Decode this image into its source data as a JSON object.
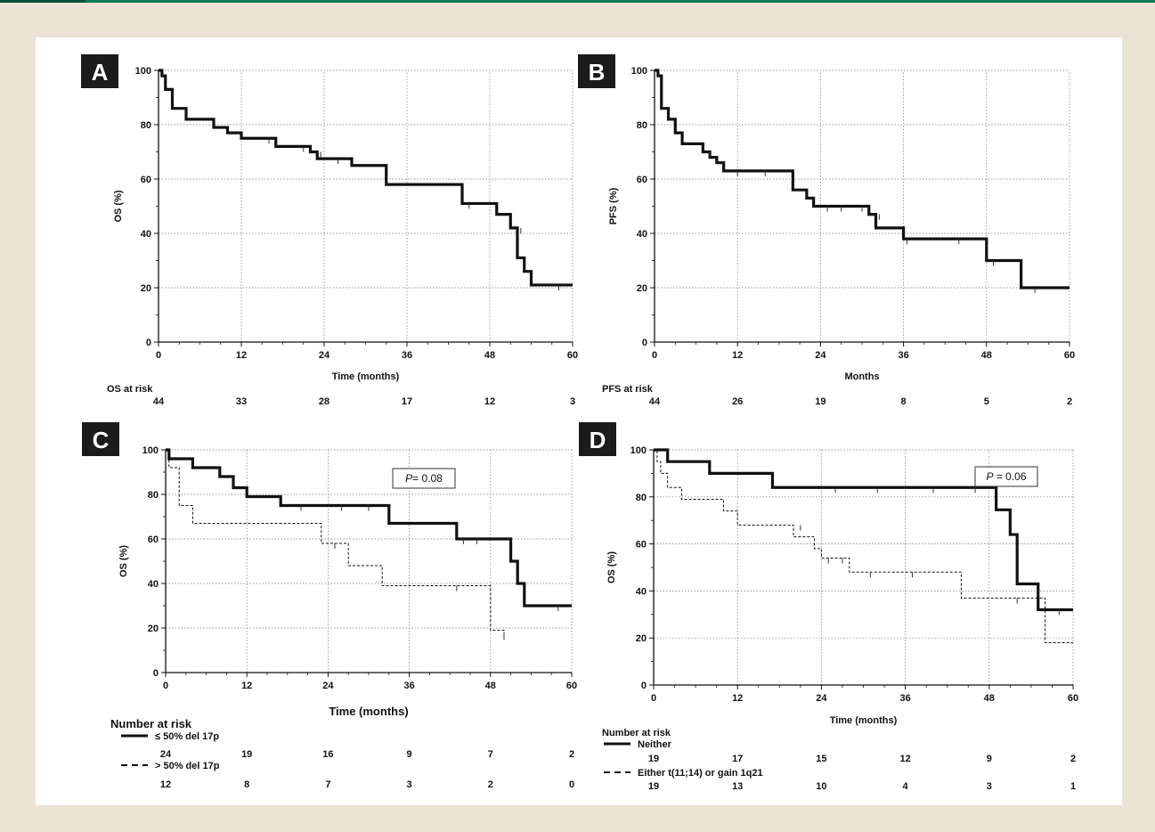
{
  "chart_data": [
    {
      "panel": "A",
      "type": "line",
      "xlabel": "Time (months)",
      "ylabel": "OS (%)",
      "xlim": [
        0,
        60
      ],
      "ylim": [
        0,
        100
      ],
      "xticks": [
        0,
        12,
        24,
        36,
        48,
        60
      ],
      "yticks": [
        0,
        20,
        40,
        60,
        80,
        100
      ],
      "grid": true,
      "series": [
        {
          "line_style": "solid-thick",
          "points": [
            [
              0,
              100
            ],
            [
              0.5,
              98
            ],
            [
              1,
              93
            ],
            [
              2,
              86
            ],
            [
              4,
              82
            ],
            [
              8,
              79
            ],
            [
              10,
              77
            ],
            [
              12,
              75
            ],
            [
              17,
              72
            ],
            [
              22,
              70
            ],
            [
              23,
              67.5
            ],
            [
              28,
              65
            ],
            [
              33,
              58
            ],
            [
              44,
              51
            ],
            [
              49,
              47
            ],
            [
              51,
              42
            ],
            [
              52,
              31
            ],
            [
              53,
              26
            ],
            [
              54,
              21
            ],
            [
              60,
              21
            ]
          ],
          "censor_marks": [
            [
              16,
              75
            ],
            [
              21,
              72
            ],
            [
              23.5,
              70
            ],
            [
              26,
              67.5
            ],
            [
              45,
              51
            ],
            [
              52.5,
              42
            ],
            [
              58,
              21
            ]
          ]
        }
      ],
      "risk_table": {
        "label": "OS at risk",
        "times": [
          0,
          12,
          24,
          36,
          48,
          60
        ],
        "rows": [
          {
            "values": [
              "44",
              "33",
              "28",
              "17",
              "12",
              "3"
            ]
          }
        ]
      }
    },
    {
      "panel": "B",
      "type": "line",
      "xlabel": "Months",
      "ylabel": "PFS (%)",
      "xlim": [
        0,
        60
      ],
      "ylim": [
        0,
        100
      ],
      "xticks": [
        0,
        12,
        24,
        36,
        48,
        60
      ],
      "yticks": [
        0,
        20,
        40,
        60,
        80,
        100
      ],
      "grid": true,
      "series": [
        {
          "line_style": "solid-thick",
          "points": [
            [
              0,
              100
            ],
            [
              0.5,
              98
            ],
            [
              1,
              86
            ],
            [
              2,
              82
            ],
            [
              3,
              77
            ],
            [
              4,
              73
            ],
            [
              7,
              70
            ],
            [
              8,
              68
            ],
            [
              9,
              66
            ],
            [
              10,
              63
            ],
            [
              20,
              56
            ],
            [
              22,
              53
            ],
            [
              23,
              50
            ],
            [
              31,
              47
            ],
            [
              32,
              42
            ],
            [
              36,
              38
            ],
            [
              48,
              30
            ],
            [
              53,
              20
            ],
            [
              60,
              20
            ]
          ],
          "censor_marks": [
            [
              8,
              70
            ],
            [
              12,
              63
            ],
            [
              16,
              63
            ],
            [
              25,
              50
            ],
            [
              27,
              50
            ],
            [
              30,
              50
            ],
            [
              32.5,
              47
            ],
            [
              36.5,
              38
            ],
            [
              44,
              38
            ],
            [
              49,
              30
            ],
            [
              55,
              20
            ]
          ]
        }
      ],
      "risk_table": {
        "label": "PFS at risk",
        "times": [
          0,
          12,
          24,
          36,
          48,
          60
        ],
        "rows": [
          {
            "values": [
              "44",
              "26",
              "19",
              "8",
              "5",
              "2"
            ]
          }
        ]
      }
    },
    {
      "panel": "C",
      "type": "line",
      "xlabel": "Time (months)",
      "ylabel": "OS (%)",
      "xlim": [
        0,
        60
      ],
      "ylim": [
        0,
        100
      ],
      "xticks": [
        0,
        12,
        24,
        36,
        48,
        60
      ],
      "yticks": [
        0,
        20,
        40,
        60,
        80,
        100
      ],
      "grid": true,
      "annotation_prefix": "P",
      "annotation_value": "= 0.08",
      "series": [
        {
          "name": "≤ 50% del 17p",
          "line_style": "solid-thick",
          "points": [
            [
              0,
              100
            ],
            [
              0.5,
              96
            ],
            [
              4,
              92
            ],
            [
              8,
              88
            ],
            [
              10,
              83
            ],
            [
              12,
              79
            ],
            [
              17,
              75
            ],
            [
              33,
              67
            ],
            [
              43,
              60
            ],
            [
              51,
              50
            ],
            [
              52,
              40
            ],
            [
              53,
              30
            ],
            [
              60,
              30
            ]
          ],
          "censor_marks": [
            [
              20,
              75
            ],
            [
              26,
              75
            ],
            [
              30,
              75
            ],
            [
              44,
              60
            ],
            [
              46,
              60
            ],
            [
              58,
              30
            ]
          ]
        },
        {
          "name": "> 50% del 17p",
          "line_style": "dashed-thin",
          "points": [
            [
              0,
              100
            ],
            [
              0.5,
              92
            ],
            [
              2,
              75
            ],
            [
              4,
              67
            ],
            [
              23,
              58
            ],
            [
              27,
              48
            ],
            [
              32,
              39
            ],
            [
              48,
              19
            ],
            [
              50,
              17
            ]
          ],
          "censor_marks": [
            [
              25,
              58
            ],
            [
              43,
              39
            ],
            [
              50,
              17
            ]
          ]
        }
      ],
      "risk_table": {
        "label": "Number at risk",
        "times": [
          0,
          12,
          24,
          36,
          48,
          60
        ],
        "rows": [
          {
            "name": "≤ 50% del 17p",
            "values": [
              "24",
              "19",
              "16",
              "9",
              "7",
              "2"
            ]
          },
          {
            "name": "> 50% del 17p",
            "values": [
              "12",
              "8",
              "7",
              "3",
              "2",
              "0"
            ]
          }
        ]
      }
    },
    {
      "panel": "D",
      "type": "line",
      "xlabel": "Time (months)",
      "ylabel": "OS (%)",
      "xlim": [
        0,
        60
      ],
      "ylim": [
        0,
        100
      ],
      "xticks": [
        0,
        12,
        24,
        36,
        48,
        60
      ],
      "yticks": [
        0,
        20,
        40,
        60,
        80,
        100
      ],
      "grid": true,
      "annotation_prefix": "P",
      "annotation_value": " = 0.06",
      "series": [
        {
          "name": "Neither",
          "line_style": "solid-thick",
          "points": [
            [
              0,
              100
            ],
            [
              2,
              95
            ],
            [
              8,
              90
            ],
            [
              17,
              84
            ],
            [
              49,
              74.5
            ],
            [
              51,
              64
            ],
            [
              52,
              43
            ],
            [
              55,
              32
            ],
            [
              60,
              32
            ]
          ],
          "censor_marks": [
            [
              26,
              84
            ],
            [
              32,
              84
            ],
            [
              40,
              84
            ],
            [
              46,
              84
            ],
            [
              58,
              32
            ]
          ]
        },
        {
          "name": "Either t(11;14) or gain 1q21",
          "line_style": "dashed-thin",
          "points": [
            [
              0,
              100
            ],
            [
              0.5,
              95
            ],
            [
              1,
              90
            ],
            [
              2,
              84
            ],
            [
              4,
              79
            ],
            [
              10,
              74
            ],
            [
              12,
              68
            ],
            [
              20,
              63
            ],
            [
              23,
              58
            ],
            [
              24,
              54
            ],
            [
              28,
              48
            ],
            [
              44,
              37
            ],
            [
              56,
              18
            ],
            [
              60,
              18
            ]
          ],
          "censor_marks": [
            [
              21,
              68
            ],
            [
              25,
              54
            ],
            [
              27,
              54
            ],
            [
              31,
              48
            ],
            [
              37,
              48
            ],
            [
              52,
              37
            ]
          ]
        }
      ],
      "risk_table": {
        "label": "Number at risk",
        "times": [
          0,
          12,
          24,
          36,
          48,
          60
        ],
        "rows": [
          {
            "name": "Neither",
            "values": [
              "19",
              "17",
              "15",
              "12",
              "9",
              "2"
            ]
          },
          {
            "name": "Either t(11;14) or gain 1q21",
            "values": [
              "19",
              "13",
              "10",
              "4",
              "3",
              "1"
            ]
          }
        ]
      }
    }
  ]
}
